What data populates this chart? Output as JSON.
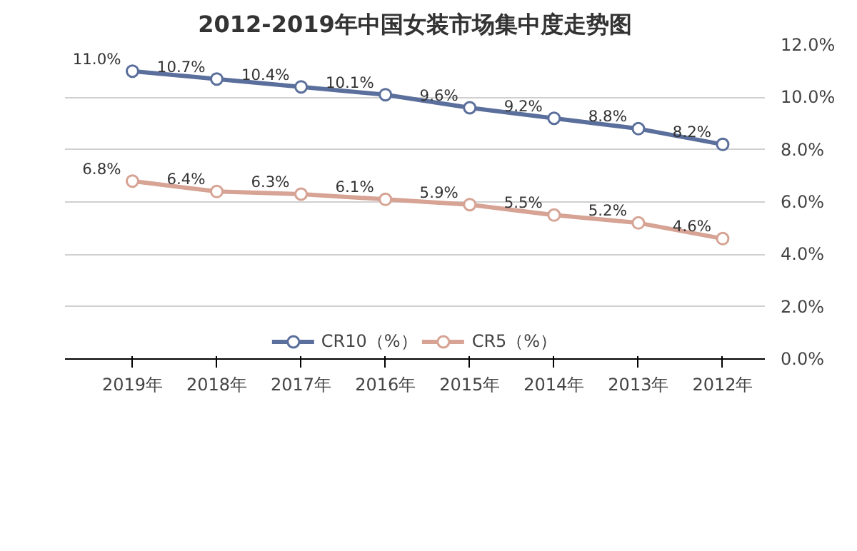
{
  "chart_data": {
    "type": "line",
    "title": "2012-2019年中国女装市场集中度走势图",
    "categories": [
      "2019年",
      "2018年",
      "2017年",
      "2016年",
      "2015年",
      "2014年",
      "2013年",
      "2012年"
    ],
    "series": [
      {
        "name": "CR10（%）",
        "color": "#5b6f9c",
        "values": [
          11.0,
          10.7,
          10.4,
          10.1,
          9.6,
          9.2,
          8.8,
          8.2
        ],
        "value_labels": [
          "11.0%",
          "10.7%",
          "10.4%",
          "10.1%",
          "9.6%",
          "9.2%",
          "8.8%",
          "8.2%"
        ]
      },
      {
        "name": "CR5（%）",
        "color": "#d6a394",
        "values": [
          6.8,
          6.4,
          6.3,
          6.1,
          5.9,
          5.5,
          5.2,
          4.6
        ],
        "value_labels": [
          "6.8%",
          "6.4%",
          "6.3%",
          "6.1%",
          "5.9%",
          "5.5%",
          "5.2%",
          "4.6%"
        ]
      }
    ],
    "ylim": [
      0,
      12
    ],
    "yticks": [
      {
        "value": 0,
        "label": "0.0%"
      },
      {
        "value": 2,
        "label": "2.0%"
      },
      {
        "value": 4,
        "label": "4.0%"
      },
      {
        "value": 6,
        "label": "6.0%"
      },
      {
        "value": 8,
        "label": "8.0%"
      },
      {
        "value": 10,
        "label": "10.0%"
      },
      {
        "value": 12,
        "label": "12.0%"
      }
    ],
    "grid": "y",
    "legend": "bottom",
    "marker": "circle",
    "line_style": "solid"
  }
}
